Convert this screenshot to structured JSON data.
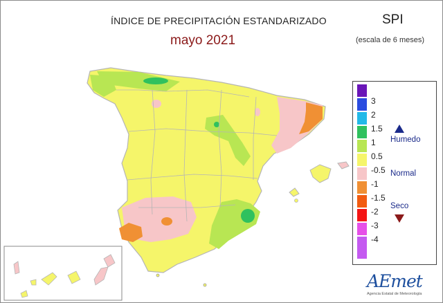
{
  "header": {
    "title": "ÍNDICE DE PRECIPITACIÓN ESTANDARIZADO",
    "subtitle": "mayo 2021",
    "index_label": "SPI",
    "scale_note": "(escala de 6 meses)"
  },
  "legend": {
    "items": [
      {
        "label": "3",
        "color": "#6a16b8"
      },
      {
        "label": "2",
        "color": "#2a4ce0"
      },
      {
        "label": "1.5",
        "color": "#22b9e8"
      },
      {
        "label": "1",
        "color": "#2fc15e"
      },
      {
        "label": "0.5",
        "color": "#b8e653"
      },
      {
        "label": "-0.5",
        "color": "#f5f56a"
      },
      {
        "label": "-1",
        "color": "#f7c6c8"
      },
      {
        "label": "-1.5",
        "color": "#f09034"
      },
      {
        "label": "-2",
        "color": "#f25b10"
      },
      {
        "label": "-3",
        "color": "#f41515"
      },
      {
        "label": "-4",
        "color": "#e64fe8"
      },
      {
        "label": "",
        "color": "#c45af0"
      }
    ],
    "states": {
      "wet": "Humedo",
      "normal": "Normal",
      "dry": "Seco"
    },
    "colors": {
      "wet_marker": "#1a2a8a",
      "dry_marker": "#8b1a1a"
    }
  },
  "logo": {
    "name": "AEmet",
    "caption": "Agencia Estatal de Meteorología"
  },
  "map": {
    "region": "Spain",
    "inset": "Canary Islands",
    "base_color": "#f5f56a",
    "border_color": "#b5b5b5"
  }
}
